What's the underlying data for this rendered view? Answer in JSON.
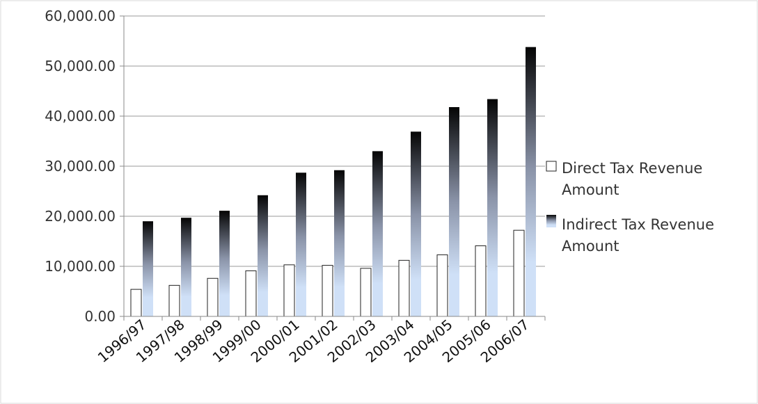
{
  "chart_data": {
    "type": "bar",
    "title": "",
    "xlabel": "",
    "ylabel": "",
    "ylim": [
      0,
      60000
    ],
    "yticks": [
      0,
      10000,
      20000,
      30000,
      40000,
      50000,
      60000
    ],
    "ytick_labels": [
      "0.00",
      "10,000.00",
      "20,000.00",
      "30,000.00",
      "40,000.00",
      "50,000.00",
      "60,000.00"
    ],
    "grid": true,
    "legend_position": "right",
    "categories": [
      "1996/97",
      "1997/98",
      "1998/99",
      "1999/00",
      "2000/01",
      "2001/02",
      "2002/03",
      "2003/04",
      "2004/05",
      "2005/06",
      "2006/07"
    ],
    "series": [
      {
        "name": "Direct Tax Revenue Amount",
        "legend_lines": [
          "Direct Tax Revenue",
          "Amount"
        ],
        "style": "white-outline",
        "values": [
          5400,
          6200,
          7600,
          9100,
          10300,
          10200,
          9600,
          11200,
          12300,
          14100,
          17200
        ]
      },
      {
        "name": "Indirect Tax Revenue Amount",
        "legend_lines": [
          "Indirect Tax Revenue",
          "Amount"
        ],
        "style": "dark-to-lightblue-gradient",
        "values": [
          19000,
          19700,
          21100,
          24200,
          28700,
          29200,
          33000,
          36900,
          41800,
          43400,
          53800
        ]
      }
    ],
    "colors": {
      "direct_fill": "#ffffff",
      "direct_stroke": "#222222",
      "indirect_top": "#050505",
      "indirect_mid": "#8a93a8",
      "indirect_bottom": "#cfe0f7",
      "gridline": "#9a9a9a",
      "axis": "#8a8a8a"
    }
  }
}
